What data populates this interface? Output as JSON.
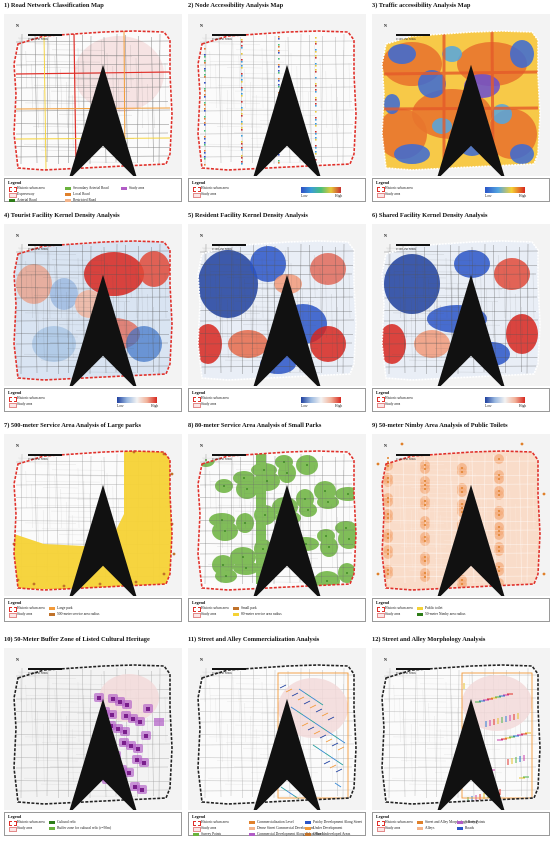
{
  "panels": [
    {
      "title": "1) Road Network Classification Map",
      "type": "roads",
      "legend": {
        "title": "Legend",
        "items": [
          "Historic urban area",
          "Expressway",
          "Arterial Road",
          "Secondary Arterial Road",
          "Local Road",
          "Restricted Road",
          "Study area"
        ]
      }
    },
    {
      "title": "2) Node Accessibility Analysis Map",
      "type": "nodes",
      "legend": {
        "title": "Legend",
        "items": [
          "Historic urban area",
          "Study area",
          "Low",
          "High"
        ]
      }
    },
    {
      "title": "3) Traffic accessibility Analysis Map",
      "type": "traffic",
      "legend": {
        "title": "Legend",
        "items": [
          "Historic urban area",
          "Study area",
          "Low",
          "High"
        ]
      }
    },
    {
      "title": "4) Tourist Facility Kernel Density Analysis",
      "type": "kd1",
      "legend": {
        "title": "Legend",
        "items": [
          "Historic urban area",
          "Study area",
          "Low",
          "High"
        ]
      }
    },
    {
      "title": "5) Resident Facility Kernel Density Analysis",
      "type": "kd2",
      "legend": {
        "title": "Legend",
        "items": [
          "Historic urban area",
          "Study area",
          "Low",
          "High"
        ]
      }
    },
    {
      "title": "6) Shared Facility Kernel Density Analysis",
      "type": "kd3",
      "legend": {
        "title": "Legend",
        "items": [
          "Historic urban area",
          "Study area",
          "Low",
          "High"
        ]
      }
    },
    {
      "title": "7) 500-meter Service Area Analysis of Large parks",
      "type": "parks_large",
      "legend": {
        "title": "Legend",
        "items": [
          "Historic urban area",
          "Study area",
          "Large park",
          "500-meter service area radius"
        ]
      }
    },
    {
      "title": "8) 80-meter Service Area Analysis of Small Parks",
      "type": "parks_small",
      "legend": {
        "title": "Legend",
        "items": [
          "Historic urban area",
          "Study area",
          "Small park",
          "80-meter service area radius"
        ]
      }
    },
    {
      "title": "9) 50-meter Nimby Area Analysis of Public Toilets",
      "type": "toilets",
      "legend": {
        "title": "Legend",
        "items": [
          "Historic urban area",
          "Study area",
          "Public toilet",
          "50-meter Nimby area radius"
        ]
      }
    },
    {
      "title": "10) 50-Meter Buffer Zone of Listed Cultural Heritage",
      "type": "heritage",
      "legend": {
        "title": "Legend",
        "items": [
          "Historic urban area",
          "Study area",
          "Cultural relic",
          "Buffer zone for cultural relic (r=50m)"
        ]
      }
    },
    {
      "title": "11) Street and Alley Commercialization Analysis",
      "type": "commercial",
      "legend": {
        "title": "Legend",
        "items": [
          "Historic urban area",
          "Study area",
          "Survey Points",
          "Commercialization Level",
          "Dense Street Commercial Development",
          "Commercial Development Along Urban Roads",
          "Patchy Development Along Street",
          "Under Development",
          "Other Undeveloped Areas"
        ]
      }
    },
    {
      "title": "12) Street and Alley Morphology Analysis",
      "type": "morphology",
      "legend": {
        "title": "Legend",
        "items": [
          "Historic urban area",
          "Study area",
          "Street and Alley Morphology Rating",
          "Alleys",
          "Survey Points",
          "Roads"
        ]
      }
    }
  ],
  "scale_text": "0  100  250     500m",
  "north_label": "N",
  "colors": {
    "boundary": "#e0302a",
    "blue": "#2a55c8",
    "red": "#d7261e",
    "yellow": "#f5d235",
    "green": "#6ab23c",
    "peach": "#f4b48a",
    "purple": "#b15cc6"
  }
}
